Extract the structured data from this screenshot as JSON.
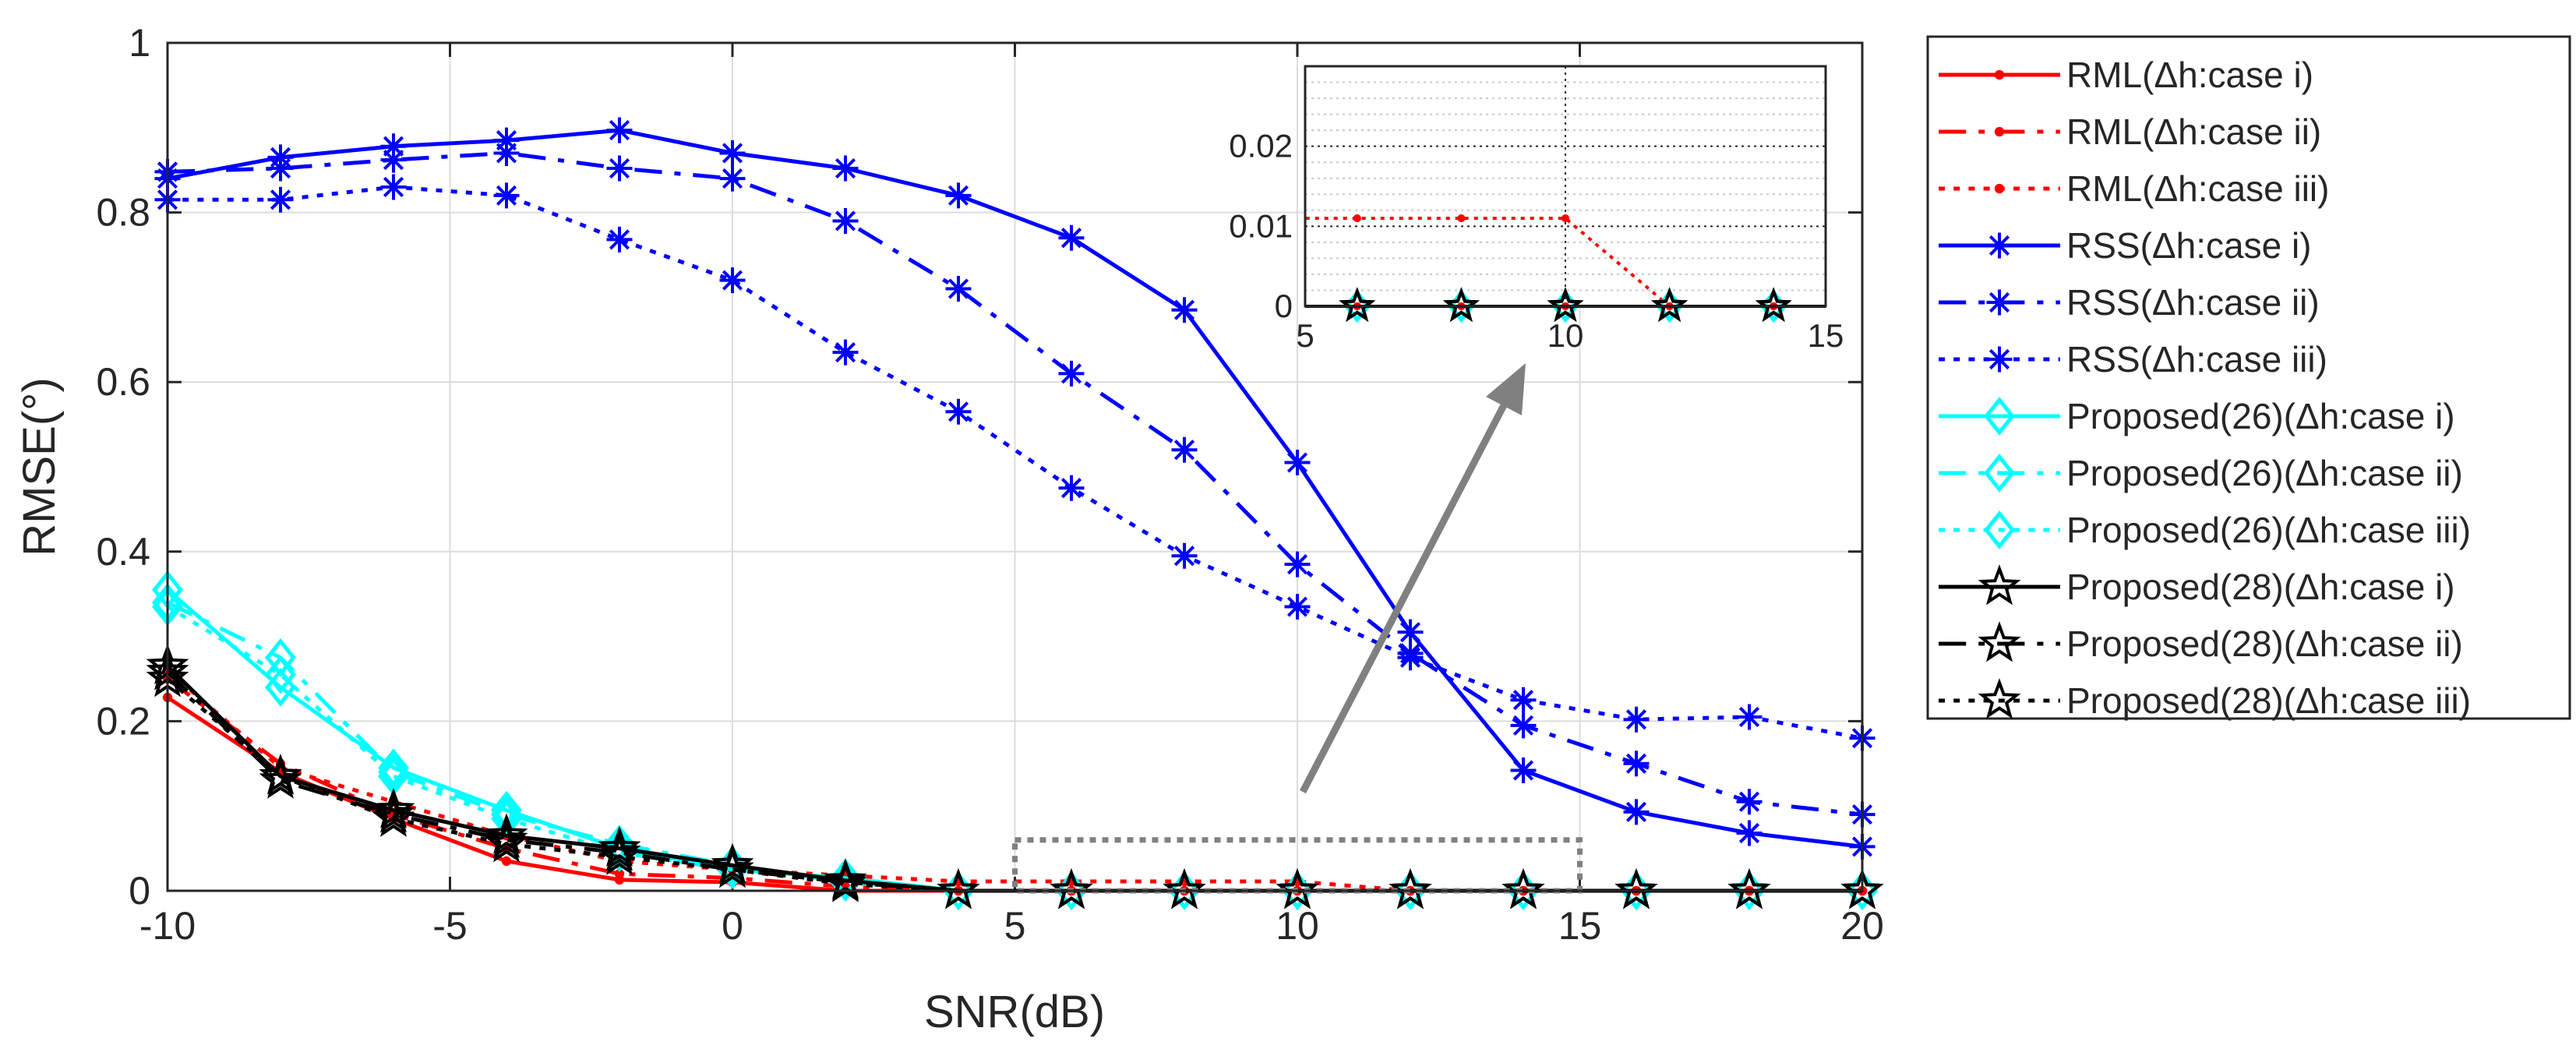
{
  "chart_data": {
    "type": "line",
    "title": "",
    "xlabel": "SNR(dB)",
    "ylabel": "RMSE(°)",
    "xlim": [
      -10,
      20
    ],
    "ylim": [
      0,
      1
    ],
    "x": [
      -10,
      -8,
      -6,
      -4,
      -2,
      0,
      2,
      4,
      6,
      8,
      10,
      12,
      14,
      16,
      18,
      20
    ],
    "xticks": [
      "-10",
      "-5",
      "0",
      "5",
      "10",
      "15",
      "20"
    ],
    "yticks": [
      "0",
      "0.2",
      "0.4",
      "0.6",
      "0.8",
      "1"
    ],
    "grid": true,
    "legend_position": "outside-right",
    "series": [
      {
        "name": "RML(Δh:case i)",
        "color": "#ff0000",
        "dash": "solid",
        "marker": "dot",
        "values": [
          0.228,
          0.14,
          0.085,
          0.035,
          0.013,
          0.01,
          0.0,
          0.0,
          0.0,
          0.0,
          0.0,
          0.0,
          0.0,
          0.0,
          0.0,
          0.0
        ]
      },
      {
        "name": "RML(Δh:case ii)",
        "color": "#ff0000",
        "dash": "dashdot",
        "marker": "dot",
        "values": [
          0.25,
          0.15,
          0.09,
          0.05,
          0.02,
          0.015,
          0.005,
          0.0,
          0.0,
          0.0,
          0.0,
          0.0,
          0.0,
          0.0,
          0.0,
          0.0
        ]
      },
      {
        "name": "RML(Δh:case iii)",
        "color": "#ff0000",
        "dash": "dotted",
        "marker": "dot",
        "values": [
          0.26,
          0.145,
          0.105,
          0.065,
          0.035,
          0.025,
          0.018,
          0.011,
          0.011,
          0.011,
          0.011,
          0.0,
          0.0,
          0.0,
          0.0,
          0.0
        ]
      },
      {
        "name": "RSS(Δh:case i)",
        "color": "#0000ff",
        "dash": "solid",
        "marker": "asterisk",
        "values": [
          0.84,
          0.865,
          0.878,
          0.885,
          0.897,
          0.87,
          0.852,
          0.82,
          0.77,
          0.685,
          0.505,
          0.305,
          0.142,
          0.093,
          0.068,
          0.052
        ]
      },
      {
        "name": "RSS(Δh:case ii)",
        "color": "#0000ff",
        "dash": "dashdot",
        "marker": "asterisk",
        "values": [
          0.848,
          0.852,
          0.862,
          0.87,
          0.852,
          0.84,
          0.79,
          0.71,
          0.61,
          0.52,
          0.385,
          0.28,
          0.195,
          0.15,
          0.105,
          0.09
        ]
      },
      {
        "name": "RSS(Δh:case iii)",
        "color": "#0000ff",
        "dash": "dotted",
        "marker": "asterisk",
        "values": [
          0.815,
          0.815,
          0.83,
          0.82,
          0.768,
          0.72,
          0.635,
          0.565,
          0.475,
          0.395,
          0.335,
          0.275,
          0.225,
          0.202,
          0.205,
          0.18
        ]
      },
      {
        "name": "Proposed(26)(Δh:case i)",
        "color": "#00ffff",
        "dash": "solid",
        "marker": "diamond",
        "values": [
          0.355,
          0.24,
          0.145,
          0.095,
          0.05,
          0.025,
          0.015,
          0.0,
          0.0,
          0.0,
          0.0,
          0.0,
          0.0,
          0.0,
          0.0,
          0.0
        ]
      },
      {
        "name": "Proposed(26)(Δh:case ii)",
        "color": "#00ffff",
        "dash": "dashdot",
        "marker": "diamond",
        "values": [
          0.34,
          0.275,
          0.14,
          0.09,
          0.055,
          0.03,
          0.01,
          0.0,
          0.0,
          0.0,
          0.0,
          0.0,
          0.0,
          0.0,
          0.0,
          0.0
        ]
      },
      {
        "name": "Proposed(26)(Δh:case iii)",
        "color": "#00ffff",
        "dash": "dotted",
        "marker": "diamond",
        "values": [
          0.335,
          0.255,
          0.135,
          0.085,
          0.045,
          0.025,
          0.015,
          0.0,
          0.0,
          0.0,
          0.0,
          0.0,
          0.0,
          0.0,
          0.0,
          0.0
        ]
      },
      {
        "name": "Proposed(28)(Δh:case i)",
        "color": "#000000",
        "dash": "solid",
        "marker": "star",
        "values": [
          0.265,
          0.135,
          0.095,
          0.065,
          0.05,
          0.03,
          0.012,
          0.0,
          0.0,
          0.0,
          0.0,
          0.0,
          0.0,
          0.0,
          0.0,
          0.0
        ]
      },
      {
        "name": "Proposed(28)(Δh:case ii)",
        "color": "#000000",
        "dash": "dashdot",
        "marker": "star",
        "values": [
          0.258,
          0.13,
          0.09,
          0.06,
          0.045,
          0.025,
          0.01,
          0.0,
          0.0,
          0.0,
          0.0,
          0.0,
          0.0,
          0.0,
          0.0,
          0.0
        ]
      },
      {
        "name": "Proposed(28)(Δh:case iii)",
        "color": "#000000",
        "dash": "dotted",
        "marker": "star",
        "values": [
          0.25,
          0.135,
          0.085,
          0.055,
          0.04,
          0.025,
          0.008,
          0.0,
          0.0,
          0.0,
          0.0,
          0.0,
          0.0,
          0.0,
          0.0,
          0.0
        ]
      }
    ],
    "inset": {
      "xlim": [
        5,
        15
      ],
      "ylim": [
        0,
        0.03
      ],
      "xticks": [
        "5",
        "10",
        "15"
      ],
      "yticks": [
        "0",
        "0.01",
        "0.02"
      ],
      "zoom_region": {
        "x": [
          5,
          15
        ],
        "y": [
          0,
          0.06
        ]
      }
    }
  }
}
